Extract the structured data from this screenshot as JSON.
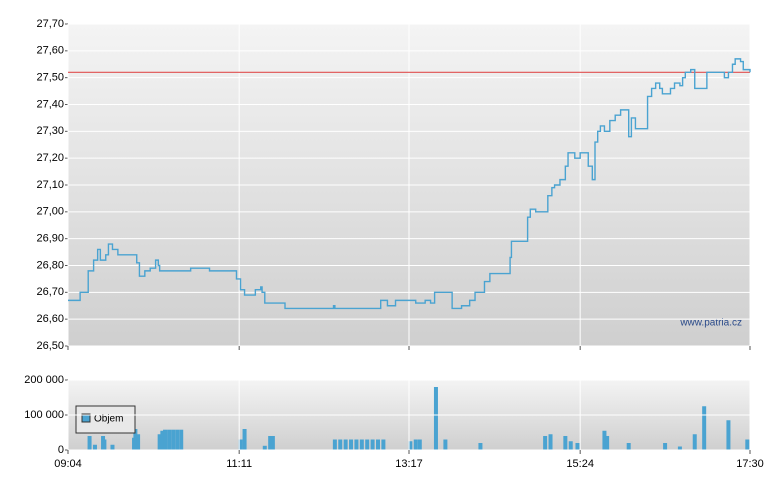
{
  "chart_data": [
    {
      "type": "line",
      "step": true,
      "color": "#4aa3d1",
      "watermark": "www.patria.cz",
      "reference_line": {
        "value": 27.52,
        "color": "#e05050"
      },
      "xlim": [
        544,
        1050
      ],
      "xticks": [
        {
          "value": 544,
          "label": "09:04"
        },
        {
          "value": 671,
          "label": "11:11"
        },
        {
          "value": 797,
          "label": "13:17"
        },
        {
          "value": 924,
          "label": "15:24"
        },
        {
          "value": 1050,
          "label": "17:30"
        }
      ],
      "ylim": [
        26.5,
        27.7
      ],
      "yticks": [
        {
          "value": 26.5,
          "label": "26,50"
        },
        {
          "value": 26.6,
          "label": "26,60"
        },
        {
          "value": 26.7,
          "label": "26,70"
        },
        {
          "value": 26.8,
          "label": "26,80"
        },
        {
          "value": 26.9,
          "label": "26,90"
        },
        {
          "value": 27.0,
          "label": "27,00"
        },
        {
          "value": 27.1,
          "label": "27,10"
        },
        {
          "value": 27.2,
          "label": "27,20"
        },
        {
          "value": 27.3,
          "label": "27,30"
        },
        {
          "value": 27.4,
          "label": "27,40"
        },
        {
          "value": 27.5,
          "label": "27,50"
        },
        {
          "value": 27.6,
          "label": "27,60"
        },
        {
          "value": 27.7,
          "label": "27,70"
        }
      ],
      "grid": true,
      "x": [
        544,
        553,
        559,
        563,
        566,
        568,
        572,
        574,
        577,
        581,
        586,
        592,
        595,
        597,
        601,
        605,
        609,
        611,
        612,
        616,
        627,
        635,
        642,
        646,
        649,
        666,
        669,
        672,
        675,
        683,
        687,
        688,
        690,
        698,
        701,
        705,
        716,
        738,
        741,
        742,
        774,
        776,
        779,
        781,
        787,
        798,
        802,
        809,
        813,
        816,
        827,
        829,
        835,
        836,
        841,
        842,
        846,
        853,
        857,
        868,
        872,
        873,
        883,
        885,
        887,
        891,
        898,
        900,
        903,
        905,
        909,
        913,
        915,
        920,
        924,
        928,
        930,
        933,
        935,
        937,
        939,
        942,
        946,
        950,
        954,
        957,
        960,
        962,
        965,
        972,
        974,
        977,
        980,
        983,
        985,
        991,
        994,
        998,
        1000,
        1002,
        1006,
        1009,
        1017,
        1018,
        1028,
        1031,
        1034,
        1037,
        1039,
        1043,
        1045,
        1050
      ],
      "values": [
        26.67,
        26.7,
        26.78,
        26.82,
        26.86,
        26.82,
        26.84,
        26.88,
        26.86,
        26.84,
        26.84,
        26.84,
        26.81,
        26.76,
        26.78,
        26.79,
        26.82,
        26.8,
        26.78,
        26.78,
        26.78,
        26.79,
        26.79,
        26.79,
        26.78,
        26.78,
        26.75,
        26.71,
        26.69,
        26.71,
        26.72,
        26.7,
        26.66,
        26.66,
        26.66,
        26.64,
        26.64,
        26.64,
        26.65,
        26.64,
        26.64,
        26.67,
        26.67,
        26.65,
        26.67,
        26.67,
        26.66,
        26.67,
        26.66,
        26.7,
        26.7,
        26.64,
        26.64,
        26.65,
        26.65,
        26.67,
        26.7,
        26.74,
        26.77,
        26.77,
        26.83,
        26.89,
        26.89,
        26.98,
        27.01,
        27.0,
        27.0,
        27.06,
        27.09,
        27.1,
        27.12,
        27.17,
        27.22,
        27.2,
        27.22,
        27.22,
        27.17,
        27.12,
        27.26,
        27.3,
        27.32,
        27.3,
        27.34,
        27.36,
        27.38,
        27.38,
        27.28,
        27.35,
        27.31,
        27.31,
        27.43,
        27.46,
        27.48,
        27.46,
        27.44,
        27.46,
        27.48,
        27.47,
        27.5,
        27.52,
        27.53,
        27.46,
        27.46,
        27.52,
        27.52,
        27.5,
        27.52,
        27.55,
        27.57,
        27.56,
        27.53,
        27.52
      ]
    },
    {
      "type": "bar",
      "color": "#4aa3d1",
      "legend": "Objem",
      "xlim": [
        544,
        1050
      ],
      "xticks": [
        {
          "value": 544,
          "label": "09:04"
        },
        {
          "value": 671,
          "label": "11:11"
        },
        {
          "value": 797,
          "label": "13:17"
        },
        {
          "value": 924,
          "label": "15:24"
        },
        {
          "value": 1050,
          "label": "17:30"
        }
      ],
      "ylim": [
        0,
        200000
      ],
      "yticks": [
        0,
        {
          "value": 100000,
          "label": "100 000"
        },
        {
          "value": 200000,
          "label": "200 000"
        }
      ],
      "grid": true,
      "x": [
        560,
        564,
        570,
        571,
        577,
        593,
        594,
        596,
        612,
        614,
        616,
        619,
        622,
        625,
        628,
        672,
        675,
        690,
        694,
        696,
        742,
        746,
        750,
        754,
        758,
        762,
        766,
        770,
        774,
        778,
        798,
        802,
        805,
        817,
        824,
        850,
        898,
        902,
        913,
        917,
        922,
        942,
        944,
        960,
        987,
        998,
        1009,
        1016,
        1034,
        1048
      ],
      "values": [
        40000,
        15000,
        40000,
        30000,
        15000,
        35000,
        60000,
        45000,
        45000,
        55000,
        58000,
        58000,
        58000,
        58000,
        58000,
        30000,
        60000,
        12000,
        40000,
        40000,
        30000,
        30000,
        30000,
        30000,
        30000,
        30000,
        30000,
        30000,
        30000,
        30000,
        25000,
        30000,
        30000,
        180000,
        30000,
        20000,
        40000,
        45000,
        40000,
        25000,
        20000,
        55000,
        40000,
        20000,
        20000,
        10000,
        45000,
        125000,
        85000,
        30000
      ]
    }
  ]
}
